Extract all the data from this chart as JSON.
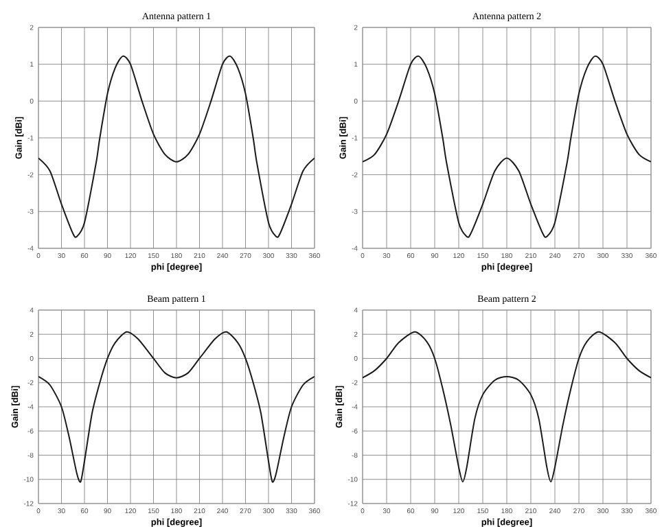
{
  "chart_data": [
    {
      "type": "line",
      "title": "Antenna pattern 1",
      "xlabel": "phi [degree]",
      "ylabel": "Gain [dBi]",
      "xlim": [
        0,
        360
      ],
      "ylim": [
        -4,
        2
      ],
      "xticks": [
        0,
        30,
        60,
        90,
        120,
        150,
        180,
        210,
        240,
        270,
        300,
        330,
        360
      ],
      "yticks": [
        -4,
        -3,
        -2,
        -1,
        0,
        1,
        2
      ],
      "grid": true,
      "marker": "none",
      "line_style": "solid",
      "x": [
        0,
        15,
        30,
        45,
        50,
        60,
        75,
        80,
        90,
        100,
        110,
        120,
        135,
        150,
        165,
        180,
        195,
        210,
        225,
        240,
        250,
        260,
        270,
        280,
        285,
        300,
        310,
        315,
        330,
        345,
        360
      ],
      "series": [
        {
          "color": "#1a1a1a",
          "values": [
            -1.55,
            -1.9,
            -2.8,
            -3.6,
            -3.68,
            -3.3,
            -1.7,
            -1.0,
            0.2,
            0.9,
            1.22,
            1.0,
            0.0,
            -0.9,
            -1.45,
            -1.65,
            -1.45,
            -0.9,
            0.0,
            1.0,
            1.22,
            0.9,
            0.2,
            -1.0,
            -1.7,
            -3.3,
            -3.68,
            -3.6,
            -2.8,
            -1.9,
            -1.55
          ]
        }
      ]
    },
    {
      "type": "line",
      "title": "Antenna pattern 2",
      "xlabel": "phi [degree]",
      "ylabel": "Gain [dBi]",
      "xlim": [
        0,
        360
      ],
      "ylim": [
        -4,
        2
      ],
      "xticks": [
        0,
        30,
        60,
        90,
        120,
        150,
        180,
        210,
        240,
        270,
        300,
        330,
        360
      ],
      "yticks": [
        -4,
        -3,
        -2,
        -1,
        0,
        1,
        2
      ],
      "grid": true,
      "marker": "none",
      "line_style": "solid",
      "x": [
        0,
        15,
        30,
        45,
        60,
        70,
        80,
        90,
        100,
        105,
        120,
        130,
        135,
        150,
        165,
        180,
        195,
        210,
        225,
        230,
        240,
        255,
        260,
        270,
        280,
        290,
        300,
        315,
        330,
        345,
        360
      ],
      "series": [
        {
          "color": "#1a1a1a",
          "values": [
            -1.65,
            -1.45,
            -0.9,
            0.0,
            1.0,
            1.22,
            0.9,
            0.2,
            -1.0,
            -1.7,
            -3.3,
            -3.68,
            -3.6,
            -2.8,
            -1.9,
            -1.55,
            -1.9,
            -2.8,
            -3.6,
            -3.68,
            -3.3,
            -1.7,
            -1.0,
            0.2,
            0.9,
            1.22,
            1.0,
            0.0,
            -0.9,
            -1.45,
            -1.65
          ]
        }
      ]
    },
    {
      "type": "line",
      "title": "Beam pattern 1",
      "xlabel": "phi [degree]",
      "ylabel": "Gain [dBi]",
      "xlim": [
        0,
        360
      ],
      "ylim": [
        -12,
        4
      ],
      "xticks": [
        0,
        30,
        60,
        90,
        120,
        150,
        180,
        210,
        240,
        270,
        300,
        330,
        360
      ],
      "yticks": [
        -12,
        -10,
        -8,
        -6,
        -4,
        -2,
        0,
        2,
        4
      ],
      "grid": true,
      "marker": "none",
      "line_style": "solid",
      "x": [
        0,
        15,
        30,
        40,
        50,
        55,
        60,
        70,
        80,
        90,
        100,
        115,
        130,
        150,
        165,
        180,
        195,
        210,
        230,
        245,
        260,
        270,
        280,
        290,
        300,
        305,
        310,
        320,
        330,
        345,
        360
      ],
      "series": [
        {
          "color": "#1a1a1a",
          "values": [
            -1.5,
            -2.2,
            -4.0,
            -6.5,
            -9.5,
            -10.2,
            -8.5,
            -4.5,
            -2.0,
            0.0,
            1.3,
            2.2,
            1.6,
            0.0,
            -1.2,
            -1.6,
            -1.2,
            0.0,
            1.6,
            2.2,
            1.3,
            0.0,
            -2.0,
            -4.5,
            -8.5,
            -10.2,
            -9.5,
            -6.5,
            -4.0,
            -2.2,
            -1.5
          ]
        }
      ]
    },
    {
      "type": "line",
      "title": "Beam pattern 2",
      "xlabel": "phi [degree]",
      "ylabel": "Gain [dBi]",
      "xlim": [
        0,
        360
      ],
      "ylim": [
        -12,
        4
      ],
      "xticks": [
        0,
        30,
        60,
        90,
        120,
        150,
        180,
        210,
        240,
        270,
        300,
        330,
        360
      ],
      "yticks": [
        -12,
        -10,
        -8,
        -6,
        -4,
        -2,
        0,
        2,
        4
      ],
      "grid": true,
      "marker": "none",
      "line_style": "solid",
      "x": [
        0,
        15,
        30,
        45,
        65,
        80,
        90,
        100,
        110,
        120,
        125,
        130,
        140,
        150,
        165,
        180,
        195,
        210,
        220,
        230,
        235,
        240,
        250,
        260,
        270,
        280,
        295,
        315,
        330,
        345,
        360
      ],
      "series": [
        {
          "color": "#1a1a1a",
          "values": [
            -1.6,
            -1.0,
            0.0,
            1.3,
            2.2,
            1.4,
            0.0,
            -2.5,
            -5.5,
            -9.0,
            -10.2,
            -9.0,
            -5.0,
            -3.0,
            -1.8,
            -1.5,
            -1.8,
            -3.0,
            -5.0,
            -9.0,
            -10.2,
            -9.0,
            -5.5,
            -2.5,
            0.0,
            1.4,
            2.2,
            1.3,
            0.0,
            -1.0,
            -1.6
          ]
        }
      ]
    }
  ]
}
